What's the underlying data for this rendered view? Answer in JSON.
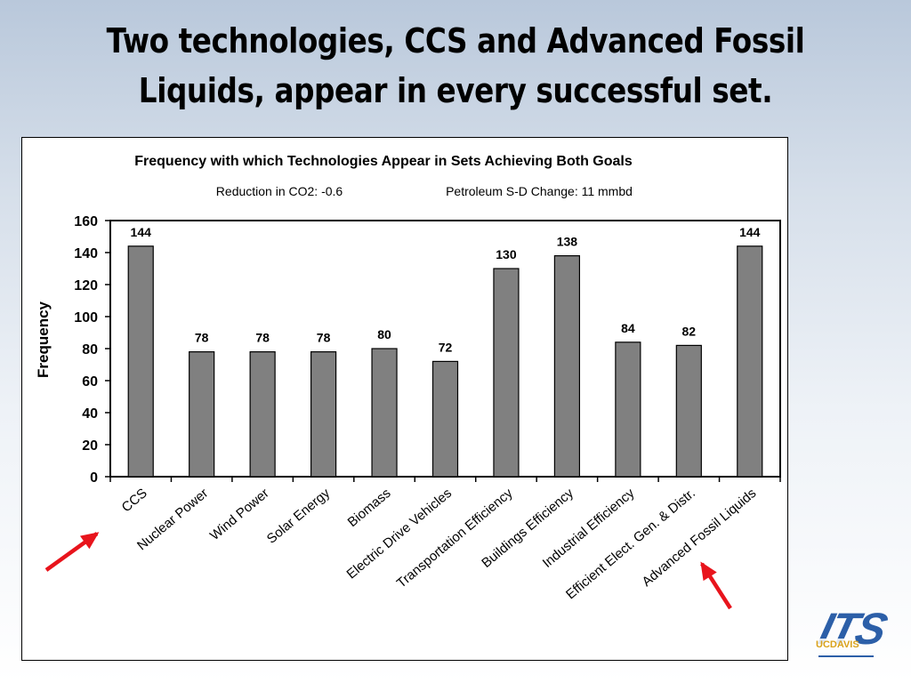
{
  "slide": {
    "title_line1": "Two technologies, CCS and Advanced Fossil",
    "title_line2": "Liquids, appear in every successful set."
  },
  "chart_data": {
    "type": "bar",
    "title": "Frequency with which Technologies Appear in Sets Achieving Both Goals",
    "subtitle_left": "Reduction in CO2: -0.6",
    "subtitle_right": "Petroleum S-D Change: 11 mmbd",
    "ylabel": "Frequency",
    "xlabel": "",
    "ylim": [
      0,
      160
    ],
    "yticks": [
      0,
      20,
      40,
      60,
      80,
      100,
      120,
      140,
      160
    ],
    "grid": false,
    "categories": [
      "CCS",
      "Nuclear Power",
      "Wind Power",
      "Solar Energy",
      "Biomass",
      "Electric Drive Vehicles",
      "Transportation Efficiency",
      "Buildings Efficiency",
      "Industrial Efficiency",
      "Efficient Elect. Gen. & Distr.",
      "Advanced Fossil Liquids"
    ],
    "values": [
      144,
      78,
      78,
      78,
      80,
      72,
      130,
      138,
      84,
      82,
      144
    ],
    "bar_color": "#808080",
    "annotations": [
      {
        "type": "arrow",
        "target": "CCS",
        "color": "#e8141c"
      },
      {
        "type": "arrow",
        "target": "Advanced Fossil Liquids",
        "color": "#e8141c"
      }
    ]
  },
  "logo": {
    "text_main": "ITS",
    "text_sub": "UCDAVIS",
    "color_main": "#2c5fa8",
    "color_sub": "#d9a21b"
  }
}
